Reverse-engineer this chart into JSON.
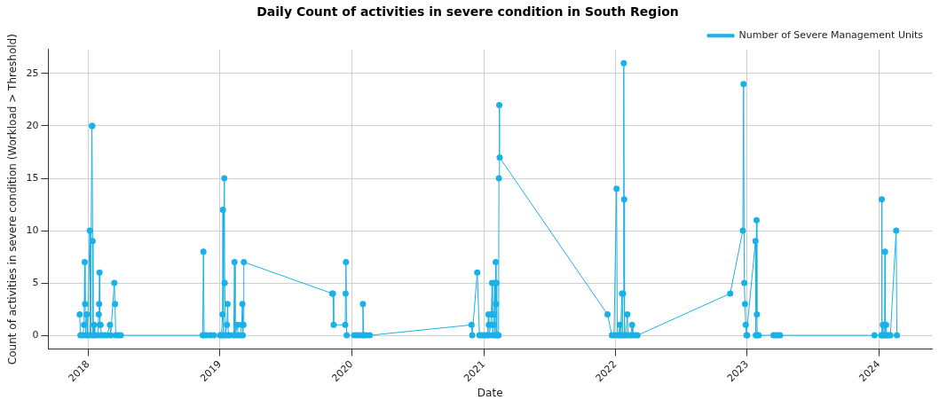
{
  "chart_data": {
    "type": "line",
    "title": "Daily Count of activities in severe condition in South Region",
    "xlabel": "Date",
    "ylabel": "Count of activities in severe condition (Workload > Threshold)",
    "x": [
      "2017-12-08",
      "2017-12-10",
      "2017-12-17",
      "2017-12-20",
      "2017-12-22",
      "2017-12-23",
      "2017-12-25",
      "2017-12-28",
      "2017-12-30",
      "2018-01-05",
      "2018-01-07",
      "2018-01-11",
      "2018-01-12",
      "2018-01-13",
      "2018-01-14",
      "2018-01-17",
      "2018-01-19",
      "2018-01-27",
      "2018-01-30",
      "2018-01-31",
      "2018-02-01",
      "2018-02-02",
      "2018-02-04",
      "2018-02-06",
      "2018-02-14",
      "2018-02-22",
      "2018-03-02",
      "2018-03-04",
      "2018-03-14",
      "2018-03-16",
      "2018-03-18",
      "2018-03-25",
      "2018-04-01",
      "2018-11-14",
      "2018-11-16",
      "2018-11-18",
      "2018-11-25",
      "2018-12-05",
      "2018-12-15",
      "2019-01-01",
      "2019-01-05",
      "2019-01-08",
      "2019-01-09",
      "2019-01-10",
      "2019-01-13",
      "2019-01-14",
      "2019-01-16",
      "2019-01-20",
      "2019-01-22",
      "2019-01-24",
      "2019-01-28",
      "2019-02-08",
      "2019-02-10",
      "2019-02-12",
      "2019-02-18",
      "2019-02-20",
      "2019-02-26",
      "2019-03-02",
      "2019-03-04",
      "2019-03-05",
      "2019-03-07",
      "2019-03-08",
      "2019-11-08",
      "2019-11-10",
      "2019-11-12",
      "2019-12-14",
      "2019-12-15",
      "2019-12-16",
      "2019-12-18",
      "2020-01-08",
      "2020-01-15",
      "2020-01-22",
      "2020-01-31",
      "2020-02-01",
      "2020-02-03",
      "2020-02-10",
      "2020-02-20",
      "2020-11-28",
      "2020-11-30",
      "2020-12-14",
      "2020-12-20",
      "2020-12-26",
      "2021-01-01",
      "2021-01-06",
      "2021-01-11",
      "2021-01-14",
      "2021-01-15",
      "2021-01-16",
      "2021-01-20",
      "2021-01-22",
      "2021-01-24",
      "2021-01-25",
      "2021-01-26",
      "2021-01-28",
      "2021-01-30",
      "2021-01-31",
      "2021-02-01",
      "2021-02-03",
      "2021-02-04",
      "2021-02-05",
      "2021-02-06",
      "2021-02-08",
      "2021-02-11",
      "2021-02-12",
      "2021-02-13",
      "2021-02-14",
      "2021-12-10",
      "2021-12-22",
      "2021-12-28",
      "2022-01-04",
      "2022-01-06",
      "2022-01-10",
      "2022-01-13",
      "2022-01-15",
      "2022-01-19",
      "2022-01-20",
      "2022-01-22",
      "2022-01-24",
      "2022-01-25",
      "2022-01-26",
      "2022-01-29",
      "2022-02-03",
      "2022-02-05",
      "2022-02-12",
      "2022-02-16",
      "2022-02-18",
      "2022-02-25",
      "2022-03-03",
      "2022-11-15",
      "2022-12-20",
      "2022-12-22",
      "2022-12-24",
      "2022-12-26",
      "2022-12-28",
      "2022-12-30",
      "2023-01-01",
      "2023-01-24",
      "2023-01-25",
      "2023-01-27",
      "2023-01-28",
      "2023-01-29",
      "2023-02-02",
      "2023-03-15",
      "2023-03-20",
      "2023-03-27",
      "2023-04-02",
      "2023-12-20",
      "2024-01-08",
      "2024-01-09",
      "2024-01-10",
      "2024-01-12",
      "2024-01-14",
      "2024-01-17",
      "2024-01-18",
      "2024-01-19",
      "2024-01-21",
      "2024-01-23",
      "2024-01-28",
      "2024-02-02",
      "2024-02-18",
      "2024-02-20"
    ],
    "series": [
      {
        "name": "Number of Severe Management Units",
        "color": "#1ab0e8",
        "values": [
          2,
          0,
          0,
          1,
          7,
          3,
          0,
          2,
          0,
          10,
          0,
          20,
          20,
          9,
          0,
          1,
          0,
          0,
          2,
          3,
          6,
          1,
          1,
          0,
          0,
          0,
          1,
          0,
          5,
          3,
          0,
          0,
          0,
          0,
          8,
          0,
          0,
          0,
          0,
          0,
          0,
          2,
          12,
          0,
          15,
          5,
          0,
          1,
          3,
          0,
          0,
          0,
          7,
          0,
          1,
          0,
          0,
          1,
          3,
          0,
          1,
          7,
          4,
          4,
          1,
          1,
          4,
          7,
          0,
          0,
          0,
          0,
          0,
          3,
          0,
          0,
          0,
          1,
          0,
          6,
          0,
          0,
          0,
          0,
          0,
          2,
          1,
          0,
          1,
          2,
          5,
          2,
          0,
          1,
          2,
          5,
          0,
          7,
          3,
          5,
          0,
          0,
          0,
          15,
          22,
          17,
          2,
          0,
          0,
          14,
          0,
          0,
          1,
          0,
          4,
          0,
          4,
          26,
          13,
          0,
          0,
          2,
          0,
          0,
          1,
          0,
          0,
          0,
          4,
          10,
          24,
          5,
          3,
          1,
          0,
          0,
          9,
          0,
          11,
          2,
          0,
          0,
          0,
          0,
          0,
          0,
          0,
          0,
          13,
          0,
          1,
          0,
          1,
          8,
          0,
          1,
          0,
          0,
          0,
          10,
          0
        ]
      }
    ],
    "xlim": [
      "2017-09-12",
      "2024-05-27"
    ],
    "xticks": [
      {
        "value": "2018-01-01",
        "label": "2018"
      },
      {
        "value": "2019-01-01",
        "label": "2019"
      },
      {
        "value": "2020-01-01",
        "label": "2020"
      },
      {
        "value": "2021-01-01",
        "label": "2021"
      },
      {
        "value": "2022-01-01",
        "label": "2022"
      },
      {
        "value": "2023-01-01",
        "label": "2023"
      },
      {
        "value": "2024-01-01",
        "label": "2024"
      }
    ],
    "ylim": [
      -1.3,
      27.3
    ],
    "yticks": [
      0,
      5,
      10,
      15,
      20,
      25
    ],
    "grid": true,
    "legend": "top right",
    "marker": "circle",
    "line_style": "solid"
  }
}
